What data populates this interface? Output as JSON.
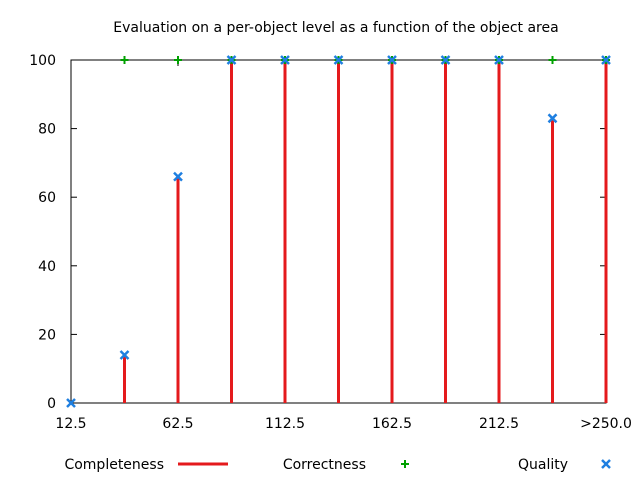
{
  "chart_data": {
    "type": "bar",
    "title": "Evaluation on a per-object level as a function of the object area",
    "xlabel": "",
    "ylabel": "",
    "x": [
      12.5,
      37.5,
      62.5,
      87.5,
      112.5,
      137.5,
      162.5,
      187.5,
      212.5,
      237.5,
      262.5
    ],
    "x_tick_labels": [
      {
        "x": 12.5,
        "label": "12.5"
      },
      {
        "x": 62.5,
        "label": "62.5"
      },
      {
        "x": 112.5,
        "label": "112.5"
      },
      {
        "x": 162.5,
        "label": "162.5"
      },
      {
        "x": 212.5,
        "label": "212.5"
      },
      {
        "x": 262.5,
        "label": ">250.0"
      }
    ],
    "xlim": [
      12.5,
      262.5
    ],
    "ylim": [
      0,
      100
    ],
    "y_ticks": [
      0,
      20,
      40,
      60,
      80,
      100
    ],
    "grid": false,
    "legend_position": "bottom",
    "series": [
      {
        "name": "Completeness",
        "style": "impulses",
        "color": "#e41a1c",
        "values": [
          0,
          14,
          66,
          100,
          100,
          100,
          100,
          100,
          100,
          83,
          100
        ]
      },
      {
        "name": "Correctness",
        "style": "points-plus",
        "color": "#00a000",
        "values": [
          null,
          100,
          100,
          100,
          100,
          100,
          100,
          100,
          100,
          100,
          100
        ]
      },
      {
        "name": "Quality",
        "style": "points-x",
        "color": "#1f7fe0",
        "values": [
          0,
          14,
          66,
          100,
          100,
          100,
          100,
          100,
          100,
          83,
          100
        ]
      }
    ]
  }
}
